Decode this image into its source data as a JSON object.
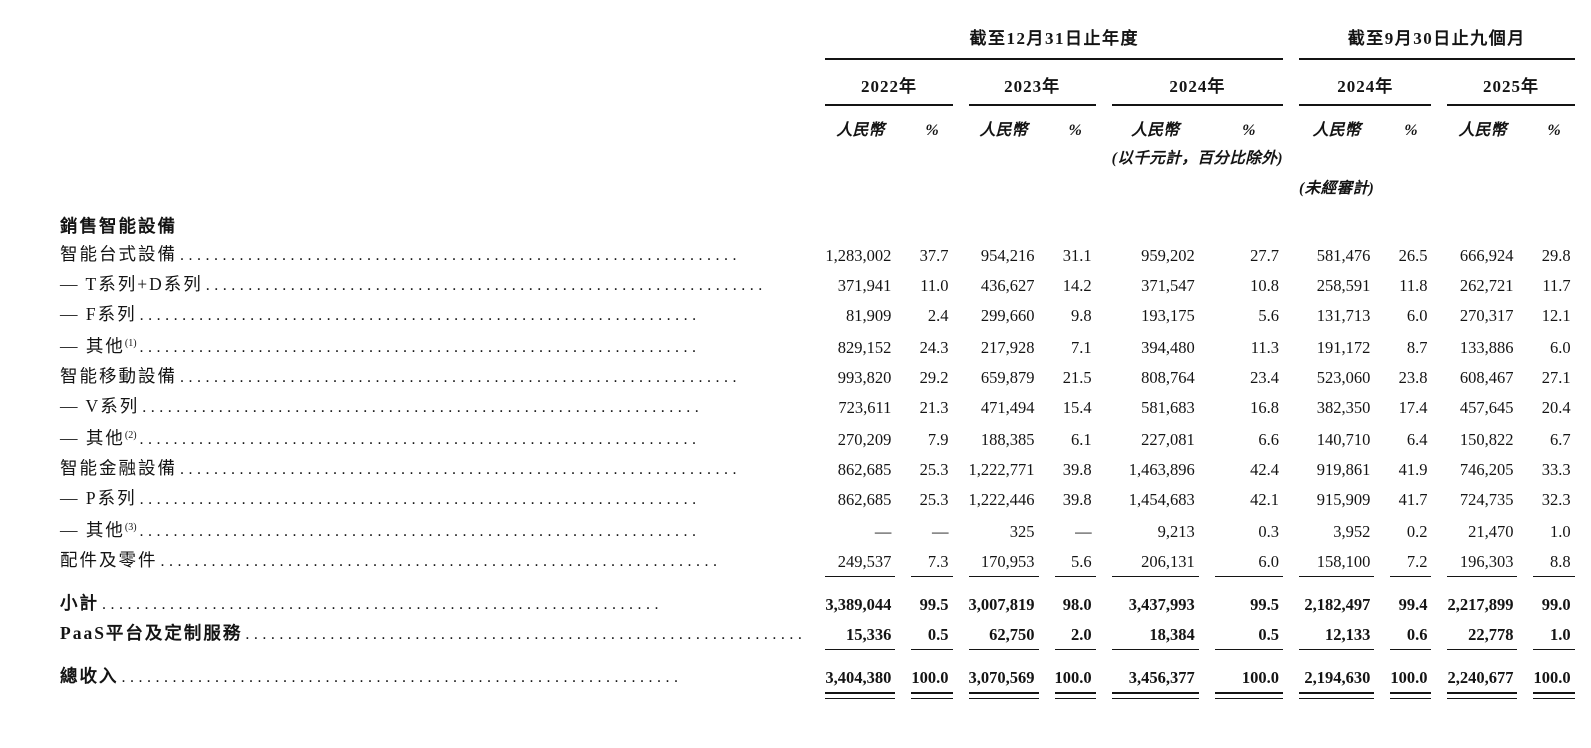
{
  "page": {
    "background": "#ffffff",
    "text_color": "#141414"
  },
  "table": {
    "group1": "截至12月31日止年度",
    "group2": "截至9月30日止九個月",
    "years": [
      "2022年",
      "2023年",
      "2024年",
      "2024年",
      "2025年"
    ],
    "rmb_header": "人民幣",
    "pct_header": "%",
    "note_thousands": "(以千元計，百分比除外)",
    "note_unaudited": "(未經審計)",
    "rows": [
      {
        "type": "section",
        "label": "銷售智能設備"
      },
      {
        "type": "item",
        "label": "智能台式設備",
        "values": [
          "1,283,002",
          "37.7",
          "954,216",
          "31.1",
          "959,202",
          "27.7",
          "581,476",
          "26.5",
          "666,924",
          "29.8"
        ]
      },
      {
        "type": "item",
        "label": "— T系列+D系列",
        "values": [
          "371,941",
          "11.0",
          "436,627",
          "14.2",
          "371,547",
          "10.8",
          "258,591",
          "11.8",
          "262,721",
          "11.7"
        ]
      },
      {
        "type": "item",
        "label": "— F系列 ",
        "values": [
          "81,909",
          "2.4",
          "299,660",
          "9.8",
          "193,175",
          "5.6",
          "131,713",
          "6.0",
          "270,317",
          "12.1"
        ]
      },
      {
        "type": "item",
        "label": "— 其他",
        "sup": "(1)",
        "values": [
          "829,152",
          "24.3",
          "217,928",
          "7.1",
          "394,480",
          "11.3",
          "191,172",
          "8.7",
          "133,886",
          "6.0"
        ]
      },
      {
        "type": "item",
        "label": "智能移動設備",
        "values": [
          "993,820",
          "29.2",
          "659,879",
          "21.5",
          "808,764",
          "23.4",
          "523,060",
          "23.8",
          "608,467",
          "27.1"
        ]
      },
      {
        "type": "item",
        "label": "— V系列 ",
        "values": [
          "723,611",
          "21.3",
          "471,494",
          "15.4",
          "581,683",
          "16.8",
          "382,350",
          "17.4",
          "457,645",
          "20.4"
        ]
      },
      {
        "type": "item",
        "label": "— 其他",
        "sup": "(2)",
        "values": [
          "270,209",
          "7.9",
          "188,385",
          "6.1",
          "227,081",
          "6.6",
          "140,710",
          "6.4",
          "150,822",
          "6.7"
        ]
      },
      {
        "type": "item",
        "label": "智能金融設備",
        "values": [
          "862,685",
          "25.3",
          "1,222,771",
          "39.8",
          "1,463,896",
          "42.4",
          "919,861",
          "41.9",
          "746,205",
          "33.3"
        ]
      },
      {
        "type": "item",
        "label": "— P系列 ",
        "values": [
          "862,685",
          "25.3",
          "1,222,446",
          "39.8",
          "1,454,683",
          "42.1",
          "915,909",
          "41.7",
          "724,735",
          "32.3"
        ]
      },
      {
        "type": "item",
        "label": "— 其他",
        "sup": "(3)",
        "values": [
          "—",
          "—",
          "325",
          "—",
          "9,213",
          "0.3",
          "3,952",
          "0.2",
          "21,470",
          "1.0"
        ]
      },
      {
        "type": "item",
        "label": "配件及零件",
        "values": [
          "249,537",
          "7.3",
          "170,953",
          "5.6",
          "206,131",
          "6.0",
          "158,100",
          "7.2",
          "196,303",
          "8.8"
        ]
      },
      {
        "type": "rule"
      },
      {
        "type": "bold",
        "label": "小計",
        "values": [
          "3,389,044",
          "99.5",
          "3,007,819",
          "98.0",
          "3,437,993",
          "99.5",
          "2,182,497",
          "99.4",
          "2,217,899",
          "99.0"
        ]
      },
      {
        "type": "bold",
        "label": "PaaS平台及定制服務 ",
        "values": [
          "15,336",
          "0.5",
          "62,750",
          "2.0",
          "18,384",
          "0.5",
          "12,133",
          "0.6",
          "22,778",
          "1.0"
        ]
      },
      {
        "type": "rule"
      },
      {
        "type": "bold",
        "label": "總收入",
        "values": [
          "3,404,380",
          "100.0",
          "3,070,569",
          "100.0",
          "3,456,377",
          "100.0",
          "2,194,630",
          "100.0",
          "2,240,677",
          "100.0"
        ]
      },
      {
        "type": "rule2"
      }
    ]
  }
}
